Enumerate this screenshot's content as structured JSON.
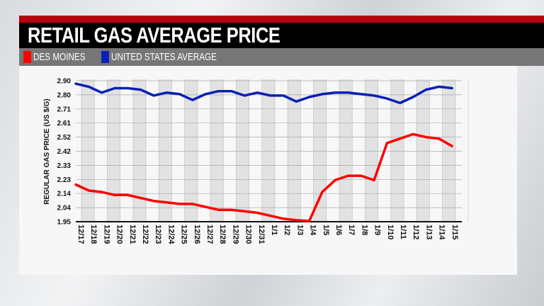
{
  "title": "RETAIL GAS AVERAGE PRICE",
  "legend": [
    {
      "label": "DES MOINES",
      "color": "#ff0000"
    },
    {
      "label": "UNITED STATES AVERAGE",
      "color": "#0a1fb4"
    }
  ],
  "chart_data": {
    "type": "line",
    "title": "RETAIL GAS AVERAGE PRICE",
    "xlabel": "",
    "ylabel": "REGULAR GAS PRICE (US $/G)",
    "ylim": [
      1.95,
      2.9
    ],
    "yticks": [
      "2.90",
      "2.80",
      "2.71",
      "2.61",
      "2.52",
      "2.42",
      "2.33",
      "2.23",
      "2.14",
      "2.04",
      "1.95"
    ],
    "grid": true,
    "legend_position": "top-left",
    "categories": [
      "12/17",
      "12/18",
      "12/19",
      "12/20",
      "12/21",
      "12/22",
      "12/23",
      "12/24",
      "12/25",
      "12/26",
      "12/27",
      "12/28",
      "12/29",
      "12/30",
      "12/31",
      "1/1",
      "1/2",
      "1/3",
      "1/4",
      "1/5",
      "1/6",
      "1/7",
      "1/8",
      "1/9",
      "1/10",
      "1/11",
      "1/12",
      "1/13",
      "1/14",
      "1/15"
    ],
    "series": [
      {
        "name": "DES MOINES",
        "color": "#ff0000",
        "values": [
          2.2,
          2.16,
          2.15,
          2.13,
          2.13,
          2.11,
          2.09,
          2.08,
          2.07,
          2.07,
          2.05,
          2.03,
          2.03,
          2.02,
          2.01,
          1.99,
          1.97,
          1.96,
          1.955,
          2.15,
          2.23,
          2.26,
          2.26,
          2.23,
          2.48,
          2.51,
          2.54,
          2.52,
          2.51,
          2.46
        ]
      },
      {
        "name": "UNITED STATES AVERAGE",
        "color": "#0a1fb4",
        "values": [
          2.88,
          2.86,
          2.82,
          2.85,
          2.85,
          2.84,
          2.8,
          2.82,
          2.81,
          2.77,
          2.81,
          2.83,
          2.83,
          2.8,
          2.82,
          2.8,
          2.8,
          2.76,
          2.79,
          2.81,
          2.82,
          2.82,
          2.81,
          2.8,
          2.78,
          2.75,
          2.79,
          2.84,
          2.86,
          2.85
        ]
      }
    ]
  }
}
